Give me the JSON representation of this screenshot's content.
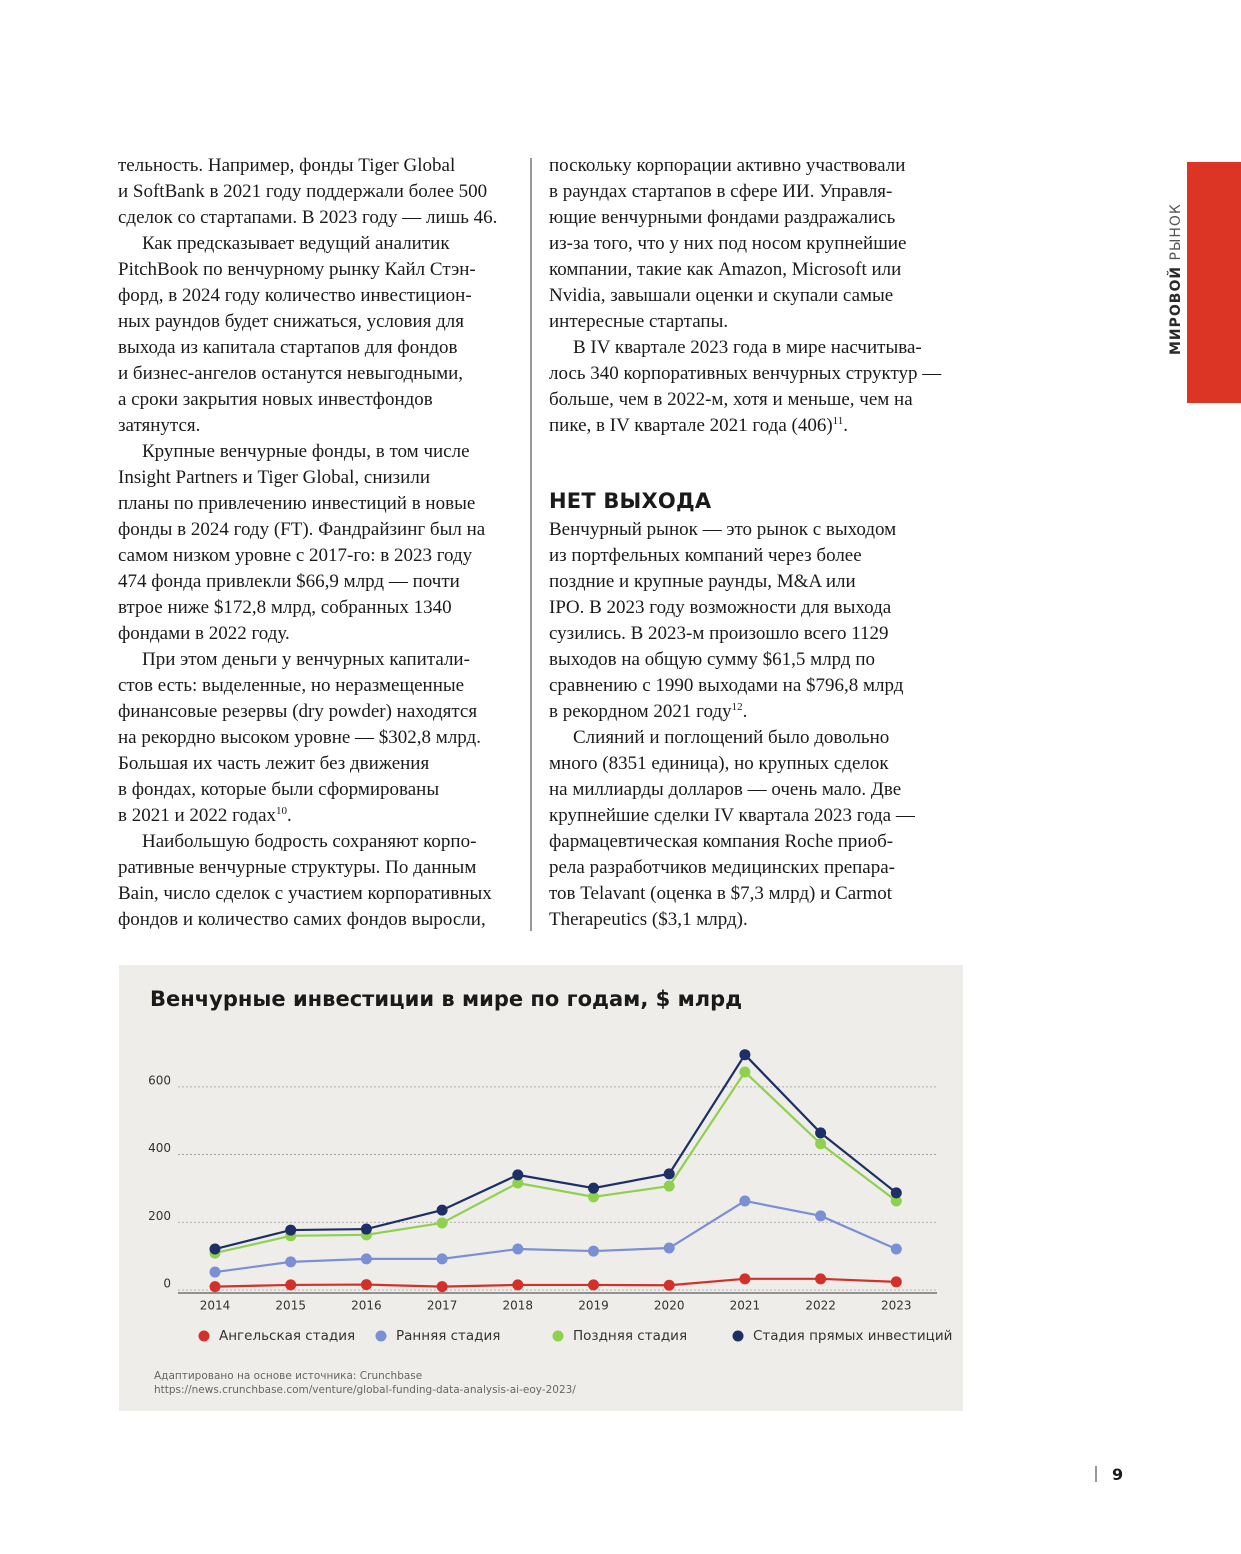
{
  "side_tab": {
    "bold": "МИРОВОЙ",
    "light": "РЫНОК"
  },
  "left_column": {
    "paragraphs": [
      [
        "тельность. Например, фонды Tiger Global",
        "и SoftBank в 2021 году поддержали более 500",
        "сделок со стартапами. В 2023 году — лишь 46."
      ],
      [
        "Как предсказывает ведущий аналитик",
        "PitchBook по венчурному рынку Кайл Стэн-",
        "форд, в 2024 году количество инвестицион-",
        "ных раундов будет снижаться, условия для",
        "выхода из капитала стартапов для фондов",
        "и бизнес-ангелов останутся невыгодными,",
        "а сроки закрытия новых инвестфондов",
        "затянутся."
      ],
      [
        "Крупные венчурные фонды, в том числе",
        "Insight Partners и Tiger Global, снизили",
        "планы по привлечению инвестиций в новые",
        "фонды в 2024 году (FT). Фандрайзинг был на",
        "самом низком уровне с 2017-го: в 2023 году",
        "474 фонда привлекли $66,9 млрд — почти",
        "втрое ниже $172,8 млрд, собранных 1340",
        "фондами в 2022 году."
      ],
      [
        "При этом деньги у венчурных капитали-",
        "стов есть: выделенные, но неразмещенные",
        "финансовые резервы (dry powder) находятся",
        "на рекордно высоком уровне — $302,8 млрд.",
        "Большая их часть лежит без движения",
        "в фондах, которые были сформированы",
        {
          "text": "в 2021 и 2022 годах",
          "sup": "10",
          "after": "."
        }
      ],
      [
        "Наибольшую бодрость сохраняют корпо-",
        "ративные венчурные структуры. По данным",
        "Bain, число сделок с участием корпоративных",
        "фондов и количество самих фондов выросли,"
      ]
    ]
  },
  "right_column": {
    "paragraphs": [
      [
        "поскольку корпорации активно участвовали",
        "в раундах стартапов в сфере ИИ. Управля-",
        "ющие венчурными фондами раздражались",
        "из-за того, что у них под носом крупнейшие",
        "компании, такие как Amazon, Microsoft или",
        "Nvidia, завышали оценки и скупали самые",
        "интересные стартапы."
      ],
      [
        "В IV квартале 2023 года в мире насчитыва-",
        "лось 340 корпоративных венчурных структур —",
        "больше, чем в 2022-м, хотя и меньше, чем на",
        {
          "text": "пике, в IV квартале 2021 года (406)",
          "sup": "11",
          "after": "."
        }
      ]
    ],
    "heading": "НЕТ ВЫХОДА",
    "paragraphs_after": [
      [
        "Венчурный рынок — это рынок с выходом",
        "из портфельных компаний через более",
        "поздние и крупные раунды, M&A или",
        "IPO. В 2023 году возможности для выхода",
        "сузились. В 2023-м произошло всего 1129",
        "выходов на общую сумму $61,5 млрд по",
        "сравнению с 1990 выходами на $796,8 млрд",
        {
          "text": "в рекордном 2021 году",
          "sup": "12",
          "after": "."
        }
      ],
      [
        "Слияний и поглощений было довольно",
        "много (8351 единица), но крупных сделок",
        "на миллиарды долларов — очень мало. Две",
        "крупнейшие сделки IV квартала 2023 года —",
        "фармацевтическая компания Roche приоб-",
        "рела разработчиков медицинских препара-",
        "тов Telavant (оценка в $7,3 млрд) и Carmot",
        "Therapeutics ($3,1 млрд)."
      ]
    ]
  },
  "chart_data": {
    "type": "line",
    "title": "Венчурные инвестиции в мире по годам, $ млрд",
    "categories": [
      "2014",
      "2015",
      "2016",
      "2017",
      "2018",
      "2019",
      "2020",
      "2021",
      "2022",
      "2023"
    ],
    "series": [
      {
        "name": "Ангельская стадия",
        "color": "#d3302a",
        "values": [
          10,
          15,
          16,
          10,
          15,
          15,
          14,
          33,
          33,
          24
        ]
      },
      {
        "name": "Ранняя стадия",
        "color": "#7b8fd4",
        "values": [
          53,
          83,
          92,
          92,
          121,
          115,
          124,
          263,
          219,
          121
        ]
      },
      {
        "name": "Поздняя стадия",
        "color": "#8fd14f",
        "values": [
          109,
          160,
          163,
          198,
          316,
          275,
          307,
          644,
          432,
          263
        ]
      },
      {
        "name": "Стадия прямых инвестиций",
        "color": "#1d2f66",
        "values": [
          121,
          177,
          180,
          236,
          340,
          301,
          343,
          695,
          464,
          287
        ]
      }
    ],
    "ylim": [
      0,
      700
    ],
    "yticks": [
      0,
      200,
      400,
      600
    ],
    "grid": true,
    "legend": "bottom",
    "source": [
      "Адаптировано на основе источника: Crunchbase",
      "https://news.crunchbase.com/venture/global-funding-data-analysis-ai-eoy-2023/"
    ]
  },
  "page_number": "9"
}
